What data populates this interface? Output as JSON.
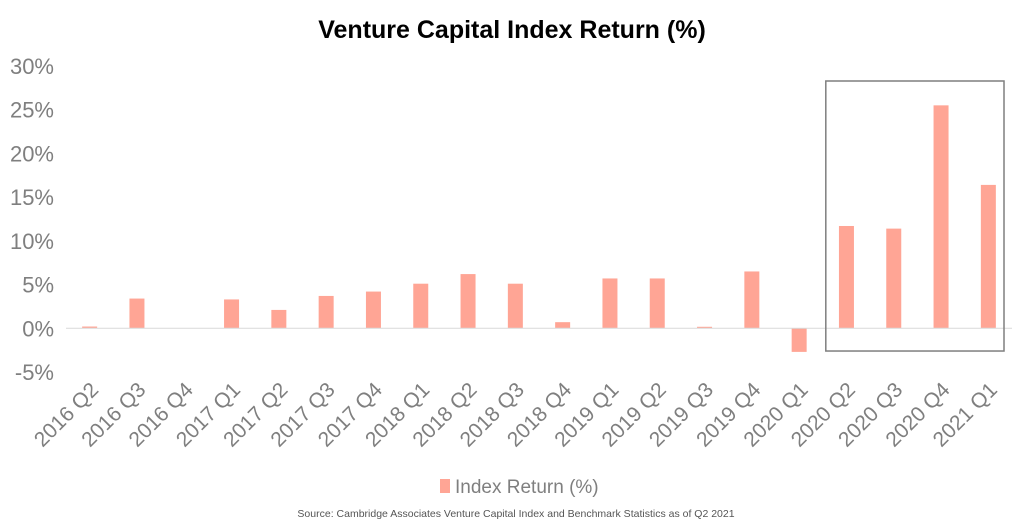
{
  "chart_data": {
    "type": "bar",
    "title": "Venture Capital Index Return (%)",
    "categories": [
      "2016 Q2",
      "2016 Q3",
      "2016 Q4",
      "2017 Q1",
      "2017 Q2",
      "2017 Q3",
      "2017 Q4",
      "2018 Q1",
      "2018 Q2",
      "2018 Q3",
      "2018 Q4",
      "2019 Q1",
      "2019 Q2",
      "2019 Q3",
      "2019 Q4",
      "2020 Q1",
      "2020 Q2",
      "2020 Q3",
      "2020 Q4",
      "2021 Q1"
    ],
    "series": [
      {
        "name": "Index Return (%)",
        "values": [
          0.2,
          3.4,
          0.0,
          3.3,
          2.1,
          3.7,
          4.2,
          5.1,
          6.2,
          5.1,
          0.7,
          5.7,
          5.7,
          0.1,
          6.5,
          -2.7,
          11.7,
          11.4,
          25.5,
          16.4
        ],
        "color": "#ffa595"
      }
    ],
    "ylim": [
      -5,
      30
    ],
    "yticks": [
      -5,
      0,
      5,
      10,
      15,
      20,
      25,
      30
    ],
    "ytick_labels": [
      "-5%",
      "0%",
      "5%",
      "10%",
      "15%",
      "20%",
      "25%",
      "30%"
    ],
    "xlabel": "",
    "ylabel": "",
    "grid": false,
    "legend_position": "bottom",
    "highlight": {
      "from": "2020 Q2",
      "to": "2021 Q1"
    }
  },
  "source_note": "Source: Cambridge Associates Venture Capital Index and Benchmark Statistics as of Q2 2021"
}
